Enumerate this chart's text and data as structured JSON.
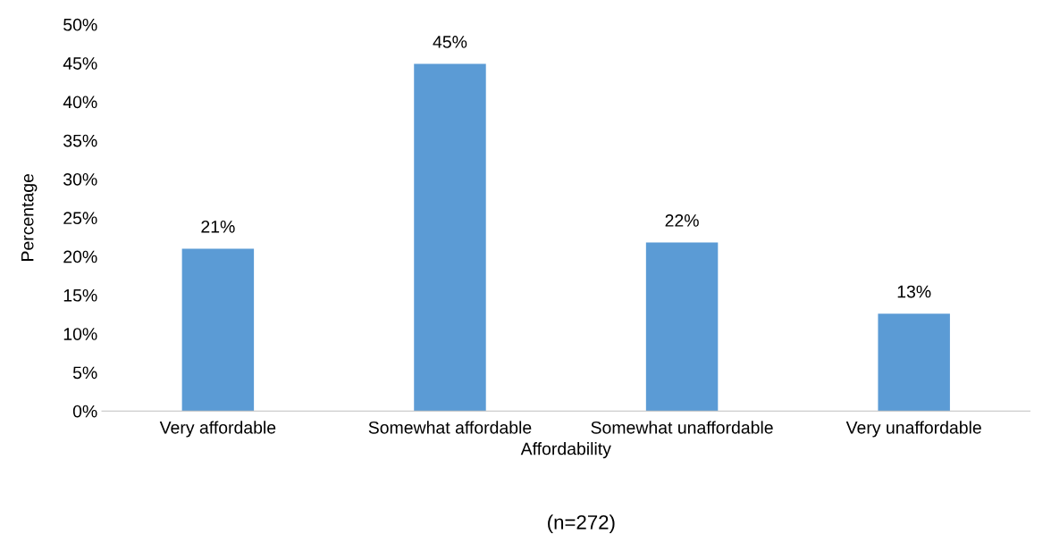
{
  "chart_data": {
    "type": "bar",
    "categories": [
      "Very affordable",
      "Somewhat affordable",
      "Somewhat unaffordable",
      "Very unaffordable"
    ],
    "values": [
      21,
      44.9,
      21.8,
      12.6
    ],
    "value_labels": [
      "21%",
      "45%",
      "22%",
      "13%"
    ],
    "color": "#5b9bd5",
    "xlabel": "Affordability",
    "ylabel": "Percentage",
    "ylim": [
      0,
      50
    ],
    "yticks": [
      {
        "value": 0,
        "label": "0%"
      },
      {
        "value": 5,
        "label": "5%"
      },
      {
        "value": 10,
        "label": "10%"
      },
      {
        "value": 15,
        "label": "15%"
      },
      {
        "value": 20,
        "label": "20%"
      },
      {
        "value": 25,
        "label": "25%"
      },
      {
        "value": 30,
        "label": "30%"
      },
      {
        "value": 35,
        "label": "35%"
      },
      {
        "value": 40,
        "label": "40%"
      },
      {
        "value": 45,
        "label": "45%"
      },
      {
        "value": 50,
        "label": "50%"
      }
    ],
    "grid": false,
    "annotations": [
      "(n=272)"
    ]
  }
}
